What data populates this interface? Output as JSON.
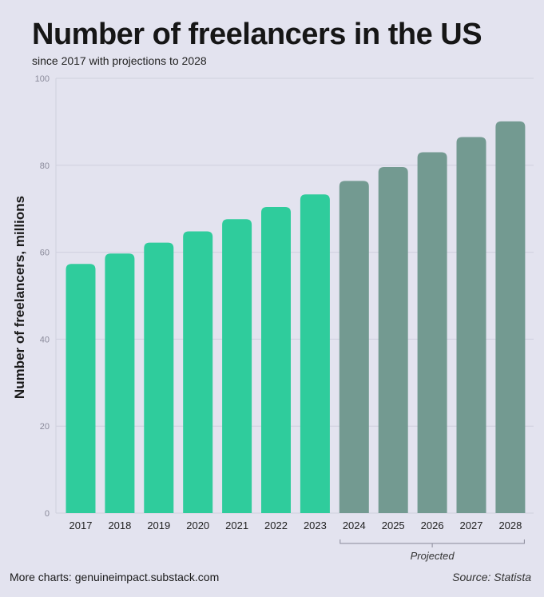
{
  "chart_data": {
    "type": "bar",
    "title": "Number of freelancers in the US",
    "subtitle": "since 2017 with projections to 2028",
    "xlabel": "",
    "ylabel": "Number of freelancers, millions",
    "ylim": [
      0,
      100
    ],
    "yticks": [
      0,
      20,
      40,
      60,
      80,
      100
    ],
    "grid": true,
    "categories": [
      "2017",
      "2018",
      "2019",
      "2020",
      "2021",
      "2022",
      "2023",
      "2024",
      "2025",
      "2026",
      "2027",
      "2028"
    ],
    "values": [
      57.3,
      59.7,
      62.2,
      64.8,
      67.6,
      70.4,
      73.3,
      76.4,
      79.6,
      83.0,
      86.5,
      90.1
    ],
    "series_status": [
      "actual",
      "actual",
      "actual",
      "actual",
      "actual",
      "actual",
      "actual",
      "projected",
      "projected",
      "projected",
      "projected",
      "projected"
    ],
    "projected_label": "Projected",
    "colors": {
      "actual": "#2fcc9c",
      "projected": "#739a91",
      "grid": "#cfd0de",
      "axis_text": "#8a8a9a"
    }
  },
  "footer": {
    "more_charts": "More charts: genuineimpact.substack.com",
    "source": "Source: Statista"
  }
}
